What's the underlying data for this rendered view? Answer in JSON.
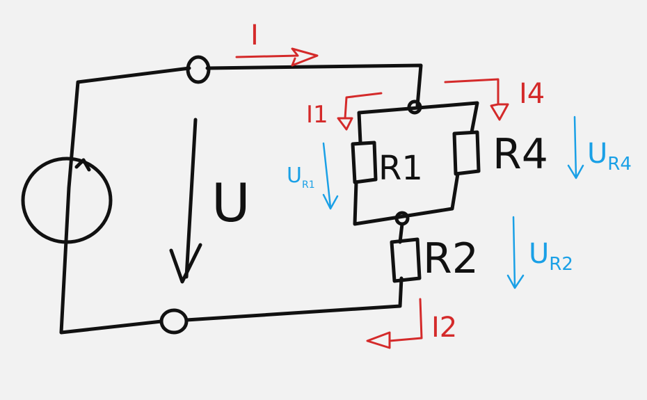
{
  "labels": {
    "source_voltage": "U",
    "total_current": "I",
    "current_i1": "I1",
    "current_i4": "I4",
    "current_i2": "I2",
    "r1": "R1",
    "r4": "R4",
    "r2": "R2",
    "u_r1_main": "U",
    "u_r1_sub": "R1",
    "u_r4_main": "U",
    "u_r4_sub": "R4",
    "u_r2_main": "U",
    "u_r2_sub": "R2"
  },
  "colors": {
    "wire": "#111111",
    "current": "#d42a2a",
    "voltage": "#1aa0e6",
    "background": "#f2f2f2"
  }
}
